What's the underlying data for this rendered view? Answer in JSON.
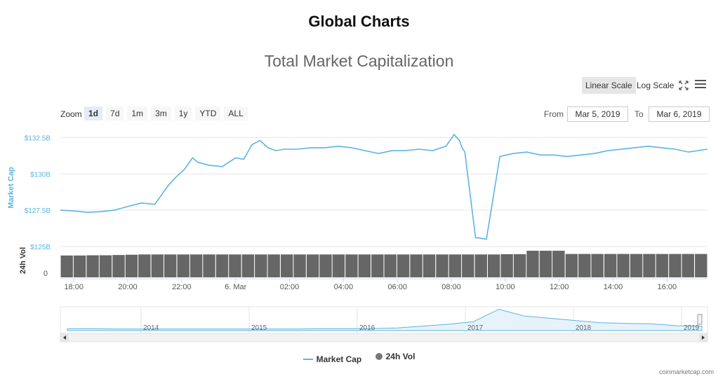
{
  "page_title": "Global Charts",
  "toolbar": {
    "linear_label": "Linear Scale",
    "log_label": "Log Scale",
    "zoom_label": "Zoom",
    "ranges": [
      "1d",
      "7d",
      "1m",
      "3m",
      "1y",
      "YTD",
      "ALL"
    ],
    "active_range": "1d",
    "from_label": "From",
    "to_label": "To",
    "from_value": "Mar 5, 2019",
    "to_value": "Mar 6, 2019"
  },
  "legend": {
    "market_cap": "Market Cap",
    "vol": "24h Vol"
  },
  "credit": "coinmarketcap.com",
  "colors": {
    "line": "#5bb4e3",
    "bar": "#666666",
    "axis_text": "#5bb4e3"
  },
  "chart_data": {
    "type": "line",
    "title": "Total Market Capitalization",
    "ylabel": "Market Cap",
    "y_unit": "USD billions",
    "ylim": [
      125,
      133
    ],
    "yticks": [
      {
        "value": 125,
        "label": "$125B"
      },
      {
        "value": 127.5,
        "label": "$127.5B"
      },
      {
        "value": 130,
        "label": "$130B"
      },
      {
        "value": 132.5,
        "label": "$132.5B"
      }
    ],
    "x_unit": "hours since 17:30 Mar 5, 2019",
    "xlim": [
      0,
      24
    ],
    "xticks": [
      {
        "value": 0.5,
        "label": "18:00"
      },
      {
        "value": 2.5,
        "label": "20:00"
      },
      {
        "value": 4.5,
        "label": "22:00"
      },
      {
        "value": 6.5,
        "label": "6. Mar"
      },
      {
        "value": 8.5,
        "label": "02:00"
      },
      {
        "value": 10.5,
        "label": "04:00"
      },
      {
        "value": 12.5,
        "label": "06:00"
      },
      {
        "value": 14.5,
        "label": "08:00"
      },
      {
        "value": 16.5,
        "label": "10:00"
      },
      {
        "value": 18.5,
        "label": "12:00"
      },
      {
        "value": 20.5,
        "label": "14:00"
      },
      {
        "value": 22.5,
        "label": "16:00"
      }
    ],
    "series": [
      {
        "name": "Market Cap",
        "x": [
          0,
          0.5,
          1.0,
          1.5,
          2.0,
          2.5,
          3.0,
          3.5,
          4.0,
          4.3,
          4.6,
          4.9,
          5.1,
          5.5,
          6.0,
          6.5,
          6.8,
          7.1,
          7.4,
          7.7,
          8.0,
          8.3,
          8.8,
          9.3,
          9.8,
          10.3,
          10.8,
          11.3,
          11.8,
          12.3,
          12.8,
          13.3,
          13.8,
          14.3,
          14.6,
          14.8,
          14.9,
          15.0,
          15.4,
          15.5,
          15.8,
          16.3,
          16.8,
          17.3,
          17.8,
          18.3,
          18.8,
          19.3,
          19.8,
          20.3,
          20.8,
          21.3,
          21.8,
          22.3,
          22.8,
          23.3,
          24.0
        ],
        "values": [
          127.5,
          127.45,
          127.35,
          127.4,
          127.5,
          127.75,
          128.0,
          127.9,
          129.2,
          129.8,
          130.3,
          131.1,
          130.8,
          130.6,
          130.5,
          131.1,
          131.0,
          132.0,
          132.3,
          131.8,
          131.6,
          131.7,
          131.7,
          131.8,
          131.8,
          131.9,
          131.8,
          131.6,
          131.4,
          131.6,
          131.6,
          131.7,
          131.6,
          131.9,
          132.7,
          132.3,
          131.8,
          131.5,
          125.6,
          125.6,
          125.5,
          131.2,
          131.4,
          131.5,
          131.3,
          131.3,
          131.2,
          131.3,
          131.4,
          131.6,
          131.7,
          131.8,
          131.9,
          131.8,
          131.7,
          131.5,
          131.7
        ]
      },
      {
        "name": "24h Vol",
        "type": "bar",
        "relative_values": [
          0.82,
          0.82,
          0.83,
          0.83,
          0.84,
          0.85,
          0.86,
          0.86,
          0.86,
          0.86,
          0.86,
          0.86,
          0.86,
          0.86,
          0.86,
          0.86,
          0.86,
          0.86,
          0.86,
          0.86,
          0.86,
          0.86,
          0.86,
          0.86,
          0.86,
          0.86,
          0.86,
          0.86,
          0.86,
          0.86,
          0.86,
          0.86,
          0.86,
          0.86,
          0.87,
          0.87,
          1.0,
          1.0,
          1.0,
          0.88,
          0.88,
          0.88,
          0.88,
          0.88,
          0.88,
          0.88,
          0.88,
          0.88,
          0.88,
          0.88
        ]
      }
    ],
    "vol_axis": {
      "label": "24h Vol",
      "zero_label": "0"
    },
    "navigator": {
      "labels": [
        "2014",
        "2015",
        "2016",
        "2017",
        "2018",
        "2019"
      ],
      "shape": [
        0.08,
        0.08,
        0.07,
        0.07,
        0.07,
        0.07,
        0.07,
        0.07,
        0.07,
        0.07,
        0.08,
        0.08,
        0.09,
        0.12,
        0.2,
        0.28,
        0.4,
        0.95,
        0.65,
        0.55,
        0.45,
        0.35,
        0.32,
        0.3,
        0.22,
        0.2
      ]
    }
  }
}
